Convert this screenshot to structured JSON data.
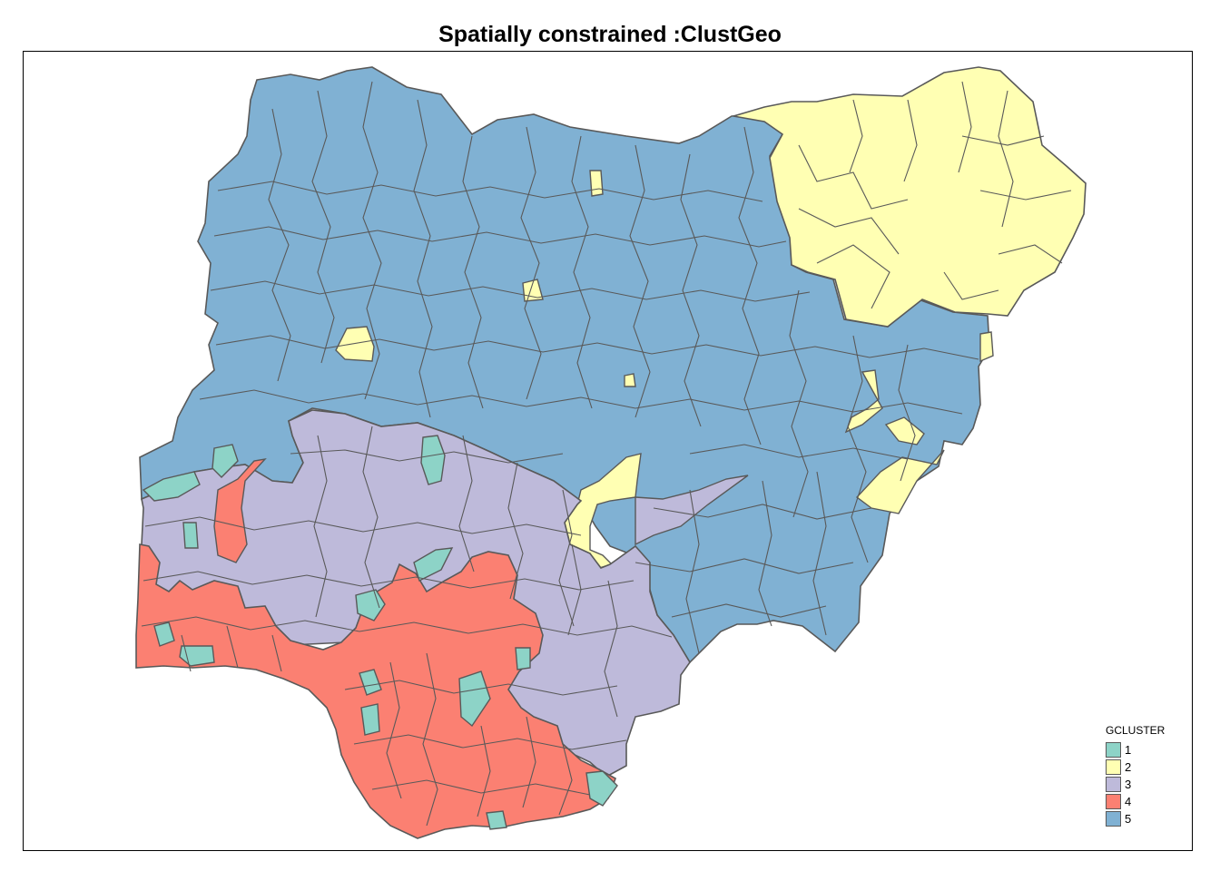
{
  "title": "Spatially constrained :ClustGeo",
  "legend": {
    "title": "GCLUSTER",
    "items": [
      {
        "label": "1",
        "color": "#8DD3C7"
      },
      {
        "label": "2",
        "color": "#FFFFB3"
      },
      {
        "label": "3",
        "color": "#BEBADA"
      },
      {
        "label": "4",
        "color": "#FB8072"
      },
      {
        "label": "5",
        "color": "#80B1D3"
      }
    ]
  },
  "border_color": "#595959"
}
